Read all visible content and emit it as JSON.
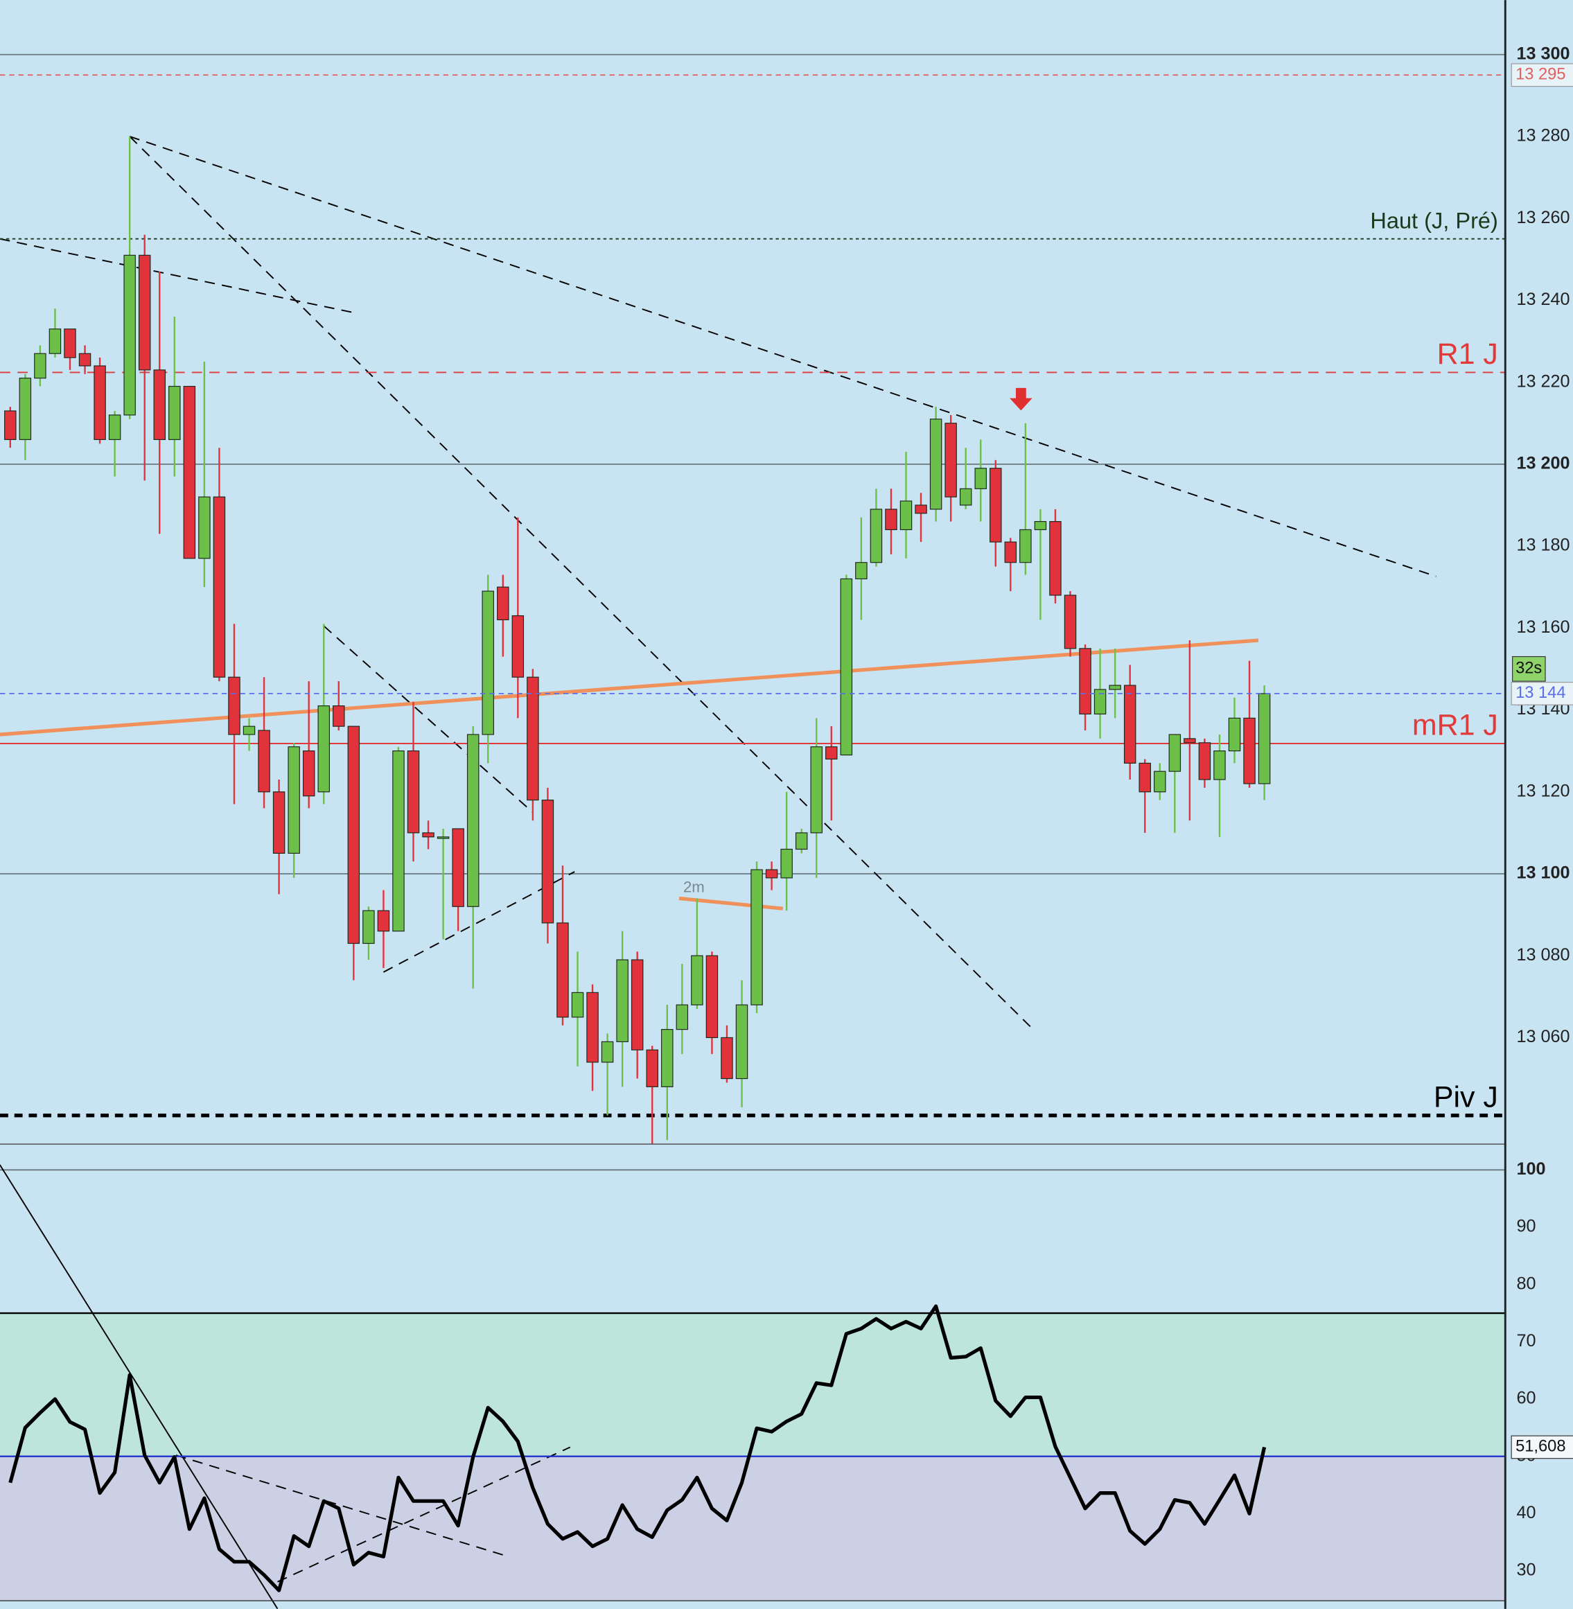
{
  "chart_data": [
    {
      "type": "candlestick",
      "open": [
        13213,
        13206,
        13221,
        13227,
        13233,
        13227,
        13224,
        13206,
        13212,
        13251,
        13223,
        13206,
        13219,
        13177,
        13192,
        13148,
        13134,
        13135,
        13120,
        13105,
        13130,
        13120,
        13141,
        13136,
        13083,
        13091,
        13086,
        13130,
        13110,
        13109,
        13111,
        13092,
        13134,
        13170,
        13163,
        13148,
        13118,
        13088,
        13065,
        13071,
        13054,
        13059,
        13079,
        13057,
        13048,
        13062,
        13068,
        13080,
        13060,
        13050,
        13068,
        13101,
        13099,
        13106,
        13110,
        13131,
        13129,
        13172,
        13176,
        13189,
        13184,
        13190,
        13189,
        13210,
        13190,
        13194,
        13199,
        13181,
        13176,
        13184,
        13186,
        13168,
        13155,
        13139,
        13145,
        13146,
        13127,
        13120,
        13125,
        13133,
        13132,
        13123,
        13130,
        13138,
        13122
      ],
      "high": [
        13214,
        13222,
        13229,
        13238,
        13233,
        13229,
        13226,
        13213,
        13280,
        13256,
        13247,
        13236,
        13219,
        13225,
        13204,
        13161,
        13138,
        13148,
        13123,
        13132,
        13147,
        13161,
        13147,
        13136,
        13092,
        13096,
        13131,
        13142,
        13113,
        13111,
        13111,
        13136,
        13173,
        13173,
        13187,
        13150,
        13121,
        13102,
        13081,
        13073,
        13061,
        13086,
        13081,
        13058,
        13068,
        13078,
        13094,
        13081,
        13063,
        13074,
        13103,
        13103,
        13120,
        13111,
        13138,
        13136,
        13173,
        13187,
        13194,
        13194,
        13203,
        13193,
        13214,
        13212,
        13204,
        13206,
        13201,
        13182,
        13210,
        13189,
        13189,
        13169,
        13156,
        13155,
        13155,
        13151,
        13128,
        13127,
        13134,
        13157,
        13133,
        13134,
        13143,
        13152,
        13146
      ],
      "low": [
        13204,
        13201,
        13219,
        13226,
        13223,
        13222,
        13205,
        13197,
        13211,
        13196,
        13183,
        13197,
        13177,
        13170,
        13147,
        13117,
        13130,
        13116,
        13095,
        13099,
        13116,
        13117,
        13135,
        13074,
        13079,
        13077,
        13086,
        13103,
        13106,
        13084,
        13086,
        13072,
        13127,
        13153,
        13138,
        13113,
        13083,
        13063,
        13053,
        13047,
        13041,
        13048,
        13050,
        13034,
        13035,
        13056,
        13067,
        13056,
        13049,
        13043,
        13066,
        13096,
        13091,
        13105,
        13099,
        13113,
        13129,
        13162,
        13175,
        13178,
        13177,
        13181,
        13186,
        13186,
        13189,
        13186,
        13175,
        13169,
        13173,
        13162,
        13166,
        13153,
        13135,
        13133,
        13138,
        13123,
        13110,
        13118,
        13110,
        13113,
        13121,
        13109,
        13127,
        13121,
        13118
      ],
      "close": [
        13206,
        13221,
        13227,
        13233,
        13226,
        13224,
        13206,
        13212,
        13251,
        13223,
        13206,
        13219,
        13177,
        13192,
        13148,
        13134,
        13136,
        13120,
        13105,
        13131,
        13119,
        13141,
        13136,
        13083,
        13091,
        13086,
        13130,
        13110,
        13109,
        13109,
        13092,
        13134,
        13169,
        13162,
        13148,
        13118,
        13088,
        13065,
        13071,
        13054,
        13059,
        13079,
        13057,
        13048,
        13062,
        13068,
        13080,
        13060,
        13050,
        13068,
        13101,
        13099,
        13106,
        13110,
        13131,
        13128,
        13172,
        13176,
        13189,
        13184,
        13191,
        13188,
        13211,
        13192,
        13194,
        13199,
        13181,
        13176,
        13184,
        13186,
        13168,
        13155,
        13139,
        13145,
        13146,
        13127,
        13120,
        13125,
        13134,
        13132,
        13123,
        13130,
        13138,
        13122,
        13144
      ],
      "up_color": "#6cc04a",
      "down_color": "#e2323c",
      "ylim": [
        13034,
        13313.3
      ],
      "yticks": [
        {
          "value": 13300,
          "label": "13 300"
        },
        {
          "value": 13280,
          "label": "13 280"
        },
        {
          "value": 13260,
          "label": "13 260"
        },
        {
          "value": 13240,
          "label": "13 240"
        },
        {
          "value": 13220,
          "label": "13 220"
        },
        {
          "value": 13200,
          "label": "13 200"
        },
        {
          "value": 13180,
          "label": "13 180"
        },
        {
          "value": 13160,
          "label": "13 160"
        },
        {
          "value": 13140,
          "label": "13 140"
        },
        {
          "value": 13120,
          "label": "13 120"
        },
        {
          "value": 13100,
          "label": "13 100"
        },
        {
          "value": 13080,
          "label": "13 080"
        },
        {
          "value": 13060,
          "label": "13 060"
        }
      ],
      "levels": [
        {
          "name": "Haut (J, Pré)",
          "value": 13255,
          "color": "#1a3a1a",
          "style": "dotted"
        },
        {
          "name": "R1 J",
          "value": 13222.4,
          "color": "#e03a3a",
          "style": "dashed"
        },
        {
          "name": "mR1 J",
          "value": 13131.8,
          "color": "#e03a3a",
          "style": "solid"
        },
        {
          "name": "Piv J",
          "value": 13041,
          "color": "#000000",
          "style": "bold"
        }
      ],
      "price_tags": [
        {
          "value": 13295,
          "label": "13 295",
          "color": "#e06060"
        },
        {
          "value": 13144,
          "label": "13 144",
          "color": "#5a6ee8"
        }
      ],
      "timer": "32s",
      "trendlines": [
        {
          "from": [
            8,
            13280
          ],
          "to": [
            95.5,
            13172.6
          ],
          "color": "#000000",
          "style": "dashed"
        },
        {
          "from": [
            8,
            13280
          ],
          "to": [
            68.6,
            13061.7
          ],
          "color": "#000000",
          "style": "dashed"
        },
        {
          "from": [
            -0.7,
            13255
          ],
          "to": [
            23,
            13237
          ],
          "color": "#000000",
          "style": "dashed"
        },
        {
          "from": [
            21,
            13160.5
          ],
          "to": [
            35,
            13115
          ],
          "color": "#000000",
          "style": "dashed"
        },
        {
          "from": [
            25,
            13076
          ],
          "to": [
            37.8,
            13100.5
          ],
          "color": "#000000",
          "style": "dashed"
        },
        {
          "from": [
            -0.7,
            13134
          ],
          "to": [
            83.6,
            13157
          ],
          "color": "#f0905a",
          "style": "thick"
        },
        {
          "from": [
            44.8,
            13094
          ],
          "to": [
            51.75,
            13091.5
          ],
          "color": "#f0905a",
          "style": "thick",
          "label": "2m"
        }
      ]
    },
    {
      "type": "line",
      "values": [
        45.4,
        55,
        57.6,
        60,
        56,
        54.7,
        43.6,
        47.2,
        64.2,
        50.2,
        45.4,
        49.9,
        37.3,
        42.7,
        33.8,
        31.6,
        31.6,
        29.3,
        26.6,
        36.1,
        34.3,
        42.2,
        40.9,
        31.1,
        33.2,
        32.5,
        46.3,
        42.2,
        42.2,
        42.2,
        37.9,
        49.9,
        58.5,
        56.1,
        52.6,
        44.5,
        38.2,
        35.6,
        36.8,
        34.3,
        35.6,
        41.5,
        37.3,
        35.9,
        40.6,
        42.4,
        46.3,
        40.9,
        38.8,
        45.4,
        54.9,
        54.3,
        56.1,
        57.4,
        62.8,
        62.4,
        71.4,
        72.3,
        74,
        72.3,
        73.5,
        72.3,
        76.2,
        67.2,
        67.4,
        68.9,
        59.7,
        57,
        60.3,
        60.3,
        51.7,
        46.3,
        40.9,
        43.6,
        43.6,
        37,
        34.7,
        37.3,
        42.4,
        41.9,
        38.2,
        42.4,
        46.7,
        40,
        51.608
      ],
      "color": "#000000",
      "last_label": {
        "value": 51.608,
        "label": "51,608"
      },
      "ylim": [
        24.8,
        103.6
      ],
      "yticks": [
        100,
        90,
        80,
        70,
        60,
        50,
        40,
        30
      ],
      "zones": [
        {
          "from": 50,
          "to": 75,
          "color": "#bde5dc"
        },
        {
          "to": 50,
          "color": "#cbd0e4"
        }
      ],
      "levels": [
        {
          "value": 75,
          "color": "#000000"
        },
        {
          "value": 50,
          "color": "#2233cc"
        }
      ],
      "trendlines": [
        {
          "from": [
            -0.7,
            100.9
          ],
          "to": [
            17.9,
            23.4
          ],
          "color": "#000000",
          "style": "solid"
        },
        {
          "from": [
            11.1,
            50.2
          ],
          "to": [
            33,
            32.8
          ],
          "color": "#000000",
          "style": "dashed"
        },
        {
          "from": [
            17.9,
            28.1
          ],
          "to": [
            37.5,
            51.6
          ],
          "color": "#000000",
          "style": "dashed"
        }
      ]
    }
  ]
}
